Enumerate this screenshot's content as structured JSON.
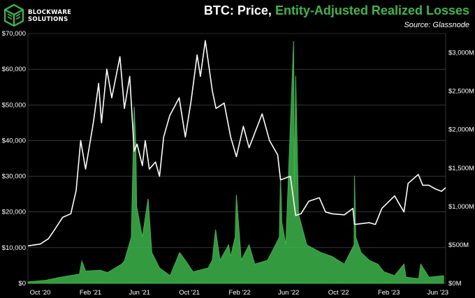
{
  "brand": {
    "line1": "BLOCKWARE",
    "line2": "SOLUTIONS"
  },
  "header": {
    "title_part1": "BTC: Price, ",
    "title_part2": "Entity-Adjusted Realized Losses",
    "subtitle": "Source: Glassnode"
  },
  "colors": {
    "background": "#000000",
    "price_line": "#ffffff",
    "losses": "#3cb54a",
    "grid": "#555555"
  },
  "chart_data": {
    "type": "line",
    "title": "BTC: Price, Entity-Adjusted Realized Losses",
    "x_ticks": [
      "Oct '20",
      "Feb '21",
      "Jun '21",
      "Oct '21",
      "Feb '22",
      "Jun '22",
      "Oct '22",
      "Feb '23",
      "Jun '23"
    ],
    "x_range": [
      "2020-09-01",
      "2023-06-20"
    ],
    "y_left": {
      "ticks": [
        "$0",
        "$10,000",
        "$20,000",
        "$30,000",
        "$40,000",
        "$50,000",
        "$60,000",
        "$70,000"
      ],
      "range": [
        0,
        70000
      ]
    },
    "y_right": {
      "ticks": [
        "$0M",
        "$500M",
        "$1,000M",
        "$1,500M",
        "$2,000M",
        "$2,500M",
        "$3,000M"
      ],
      "range": [
        0,
        3250
      ]
    },
    "series": [
      {
        "axis": "left",
        "points": [
          [
            "2020-09-01",
            10500
          ],
          [
            "2020-10-01",
            11000
          ],
          [
            "2020-10-21",
            12500
          ],
          [
            "2020-11-05",
            15000
          ],
          [
            "2020-11-25",
            18500
          ],
          [
            "2020-12-15",
            19500
          ],
          [
            "2020-12-28",
            26000
          ],
          [
            "2021-01-08",
            40000
          ],
          [
            "2021-01-20",
            32000
          ],
          [
            "2021-02-08",
            45000
          ],
          [
            "2021-02-21",
            56000
          ],
          [
            "2021-02-28",
            45000
          ],
          [
            "2021-03-13",
            60000
          ],
          [
            "2021-03-25",
            52000
          ],
          [
            "2021-04-14",
            63500
          ],
          [
            "2021-04-25",
            49000
          ],
          [
            "2021-05-08",
            58000
          ],
          [
            "2021-05-19",
            37000
          ],
          [
            "2021-05-26",
            39000
          ],
          [
            "2021-06-08",
            33000
          ],
          [
            "2021-06-15",
            40000
          ],
          [
            "2021-06-25",
            32000
          ],
          [
            "2021-07-10",
            34000
          ],
          [
            "2021-07-20",
            30000
          ],
          [
            "2021-07-30",
            41000
          ],
          [
            "2021-08-14",
            47000
          ],
          [
            "2021-09-06",
            52000
          ],
          [
            "2021-09-21",
            41000
          ],
          [
            "2021-10-05",
            51000
          ],
          [
            "2021-10-20",
            64000
          ],
          [
            "2021-10-28",
            58000
          ],
          [
            "2021-11-09",
            68000
          ],
          [
            "2021-11-26",
            54000
          ],
          [
            "2021-12-05",
            49000
          ],
          [
            "2021-12-25",
            50500
          ],
          [
            "2022-01-10",
            41000
          ],
          [
            "2022-01-24",
            35500
          ],
          [
            "2022-02-10",
            44000
          ],
          [
            "2022-02-24",
            38000
          ],
          [
            "2022-03-28",
            47500
          ],
          [
            "2022-04-15",
            40000
          ],
          [
            "2022-05-05",
            36000
          ],
          [
            "2022-05-12",
            29000
          ],
          [
            "2022-06-05",
            30000
          ],
          [
            "2022-06-18",
            19000
          ],
          [
            "2022-07-01",
            19500
          ],
          [
            "2022-07-20",
            23000
          ],
          [
            "2022-08-15",
            24000
          ],
          [
            "2022-08-30",
            20000
          ],
          [
            "2022-09-15",
            19500
          ],
          [
            "2022-10-15",
            19200
          ],
          [
            "2022-11-05",
            21000
          ],
          [
            "2022-11-09",
            16500
          ],
          [
            "2022-12-15",
            17000
          ],
          [
            "2022-12-30",
            16500
          ],
          [
            "2023-01-15",
            21000
          ],
          [
            "2023-02-15",
            24500
          ],
          [
            "2023-03-10",
            20000
          ],
          [
            "2023-03-20",
            28000
          ],
          [
            "2023-04-14",
            30500
          ],
          [
            "2023-04-25",
            27500
          ],
          [
            "2023-05-10",
            27500
          ],
          [
            "2023-05-25",
            26500
          ],
          [
            "2023-06-10",
            25800
          ],
          [
            "2023-06-20",
            26800
          ]
        ]
      },
      {
        "axis": "right",
        "points": [
          [
            "2020-09-01",
            20
          ],
          [
            "2020-10-15",
            40
          ],
          [
            "2020-11-20",
            80
          ],
          [
            "2021-01-05",
            120
          ],
          [
            "2021-01-11",
            290
          ],
          [
            "2021-01-20",
            160
          ],
          [
            "2021-02-25",
            170
          ],
          [
            "2021-03-15",
            140
          ],
          [
            "2021-04-18",
            250
          ],
          [
            "2021-04-25",
            290
          ],
          [
            "2021-05-12",
            600
          ],
          [
            "2021-05-19",
            2300
          ],
          [
            "2021-05-23",
            1800
          ],
          [
            "2021-05-25",
            1000
          ],
          [
            "2021-06-08",
            600
          ],
          [
            "2021-06-22",
            1100
          ],
          [
            "2021-07-01",
            400
          ],
          [
            "2021-07-20",
            200
          ],
          [
            "2021-08-15",
            100
          ],
          [
            "2021-09-07",
            400
          ],
          [
            "2021-09-21",
            300
          ],
          [
            "2021-10-10",
            150
          ],
          [
            "2021-11-16",
            200
          ],
          [
            "2021-11-26",
            300
          ],
          [
            "2021-12-04",
            700
          ],
          [
            "2021-12-15",
            300
          ],
          [
            "2022-01-05",
            500
          ],
          [
            "2022-01-10",
            350
          ],
          [
            "2022-01-21",
            600
          ],
          [
            "2022-01-24",
            1150
          ],
          [
            "2022-02-05",
            300
          ],
          [
            "2022-02-24",
            500
          ],
          [
            "2022-03-10",
            250
          ],
          [
            "2022-04-10",
            300
          ],
          [
            "2022-04-25",
            450
          ],
          [
            "2022-05-09",
            600
          ],
          [
            "2022-05-12",
            1400
          ],
          [
            "2022-05-15",
            800
          ],
          [
            "2022-05-25",
            500
          ],
          [
            "2022-06-13",
            3150
          ],
          [
            "2022-06-15",
            1200
          ],
          [
            "2022-06-18",
            2700
          ],
          [
            "2022-06-25",
            900
          ],
          [
            "2022-07-15",
            500
          ],
          [
            "2022-08-19",
            400
          ],
          [
            "2022-09-15",
            350
          ],
          [
            "2022-10-15",
            250
          ],
          [
            "2022-11-08",
            500
          ],
          [
            "2022-11-09",
            1400
          ],
          [
            "2022-11-12",
            600
          ],
          [
            "2022-11-25",
            400
          ],
          [
            "2022-12-15",
            300
          ],
          [
            "2023-01-05",
            250
          ],
          [
            "2023-01-20",
            150
          ],
          [
            "2023-02-15",
            100
          ],
          [
            "2023-03-10",
            250
          ],
          [
            "2023-03-15",
            80
          ],
          [
            "2023-04-15",
            60
          ],
          [
            "2023-04-20",
            250
          ],
          [
            "2023-05-10",
            80
          ],
          [
            "2023-06-15",
            100
          ]
        ]
      }
    ]
  }
}
